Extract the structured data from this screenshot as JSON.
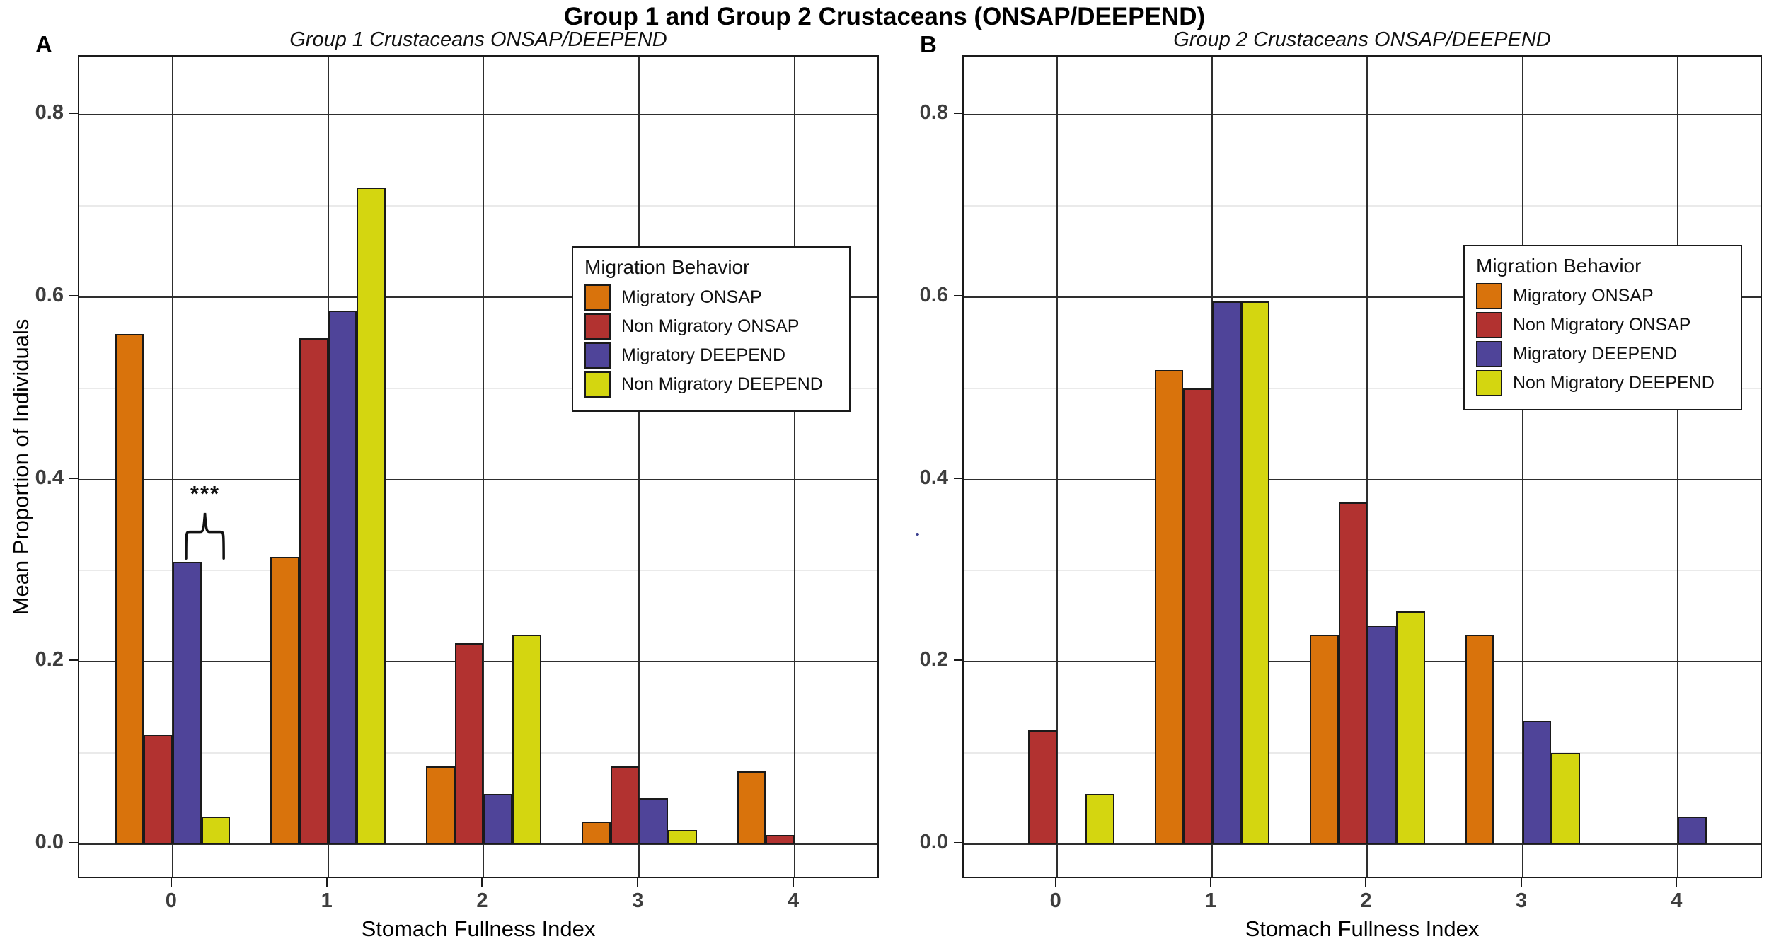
{
  "title": "Group 1 and Group 2 Crustaceans (ONSAP/DEEPEND)",
  "axes": {
    "x_label": "Stomach Fullness Index",
    "y_label": "Mean Proportion of Individuals",
    "x_tick_labels": [
      "0",
      "1",
      "2",
      "3",
      "4"
    ],
    "y_tick_labels": [
      "0.0",
      "0.2",
      "0.4",
      "0.6",
      "0.8"
    ],
    "y_ticks": [
      0.0,
      0.2,
      0.4,
      0.6,
      0.8
    ],
    "y_minor_ticks": [
      0.1,
      0.3,
      0.5,
      0.7
    ],
    "ylim": [
      0,
      0.8
    ]
  },
  "legend": {
    "title": "Migration Behavior",
    "entries": [
      {
        "label": "Migratory ONSAP",
        "color": "#D9730C"
      },
      {
        "label": "Non Migratory ONSAP",
        "color": "#B23230"
      },
      {
        "label": "Migratory DEEPEND",
        "color": "#4F4499"
      },
      {
        "label": "Non Migratory DEEPEND",
        "color": "#D4D610"
      }
    ]
  },
  "chart_data": [
    {
      "type": "bar",
      "panel_label": "A",
      "title": "Group 1 Crustaceans ONSAP/DEEPEND",
      "categories": [
        0,
        1,
        2,
        3,
        4
      ],
      "series": [
        {
          "name": "Migratory ONSAP",
          "color": "#D9730C",
          "values": [
            0.56,
            0.315,
            0.085,
            0.025,
            0.08
          ]
        },
        {
          "name": "Non Migratory ONSAP",
          "color": "#B23230",
          "values": [
            0.12,
            0.555,
            0.22,
            0.085,
            0.01
          ]
        },
        {
          "name": "Migratory DEEPEND",
          "color": "#4F4499",
          "values": [
            0.31,
            0.585,
            0.055,
            0.05,
            0
          ]
        },
        {
          "name": "Non Migratory DEEPEND",
          "color": "#D4D610",
          "values": [
            0.03,
            0.72,
            0.23,
            0.015,
            0
          ]
        }
      ],
      "xlabel": "Stomach Fullness Index",
      "ylabel": "Mean Proportion of Individuals",
      "ylim": [
        0,
        0.8
      ],
      "grid": true,
      "legend_position": "upper-right-inside",
      "legend_visible": true,
      "annotation": {
        "text": "***",
        "x": 0.21,
        "y": 0.37,
        "brace": {
          "x1": 0.08,
          "x2": 0.34,
          "y_top": 0.365,
          "y_bottom": 0.312
        }
      }
    },
    {
      "type": "bar",
      "panel_label": "B",
      "title": "Group 2 Crustaceans ONSAP/DEEPEND",
      "categories": [
        0,
        1,
        2,
        3,
        4
      ],
      "series": [
        {
          "name": "Migratory ONSAP",
          "color": "#D9730C",
          "values": [
            0,
            0.52,
            0.23,
            0.23,
            0
          ]
        },
        {
          "name": "Non Migratory ONSAP",
          "color": "#B23230",
          "values": [
            0.125,
            0.5,
            0.375,
            0,
            0
          ]
        },
        {
          "name": "Migratory DEEPEND",
          "color": "#4F4499",
          "values": [
            0,
            0.595,
            0.24,
            0.135,
            0.03
          ]
        },
        {
          "name": "Non Migratory DEEPEND",
          "color": "#D4D610",
          "values": [
            0.055,
            0.595,
            0.255,
            0.1,
            0
          ]
        }
      ],
      "xlabel": "Stomach Fullness Index",
      "ylabel": "Mean Proportion of Individuals",
      "ylim": [
        0,
        0.8
      ],
      "grid": true,
      "legend_position": "upper-right-inside",
      "legend_visible": true,
      "stray_dot": {
        "x": -0.89,
        "y": 0.338
      }
    }
  ],
  "colors": {
    "background": "#ffffff",
    "grid_major": "#2e2e2e",
    "grid_minor": "#eaeaea",
    "panel_border": "#1a1a1a",
    "bar_border": "#1a1a1a",
    "tick_label": "#3d3d3d"
  }
}
